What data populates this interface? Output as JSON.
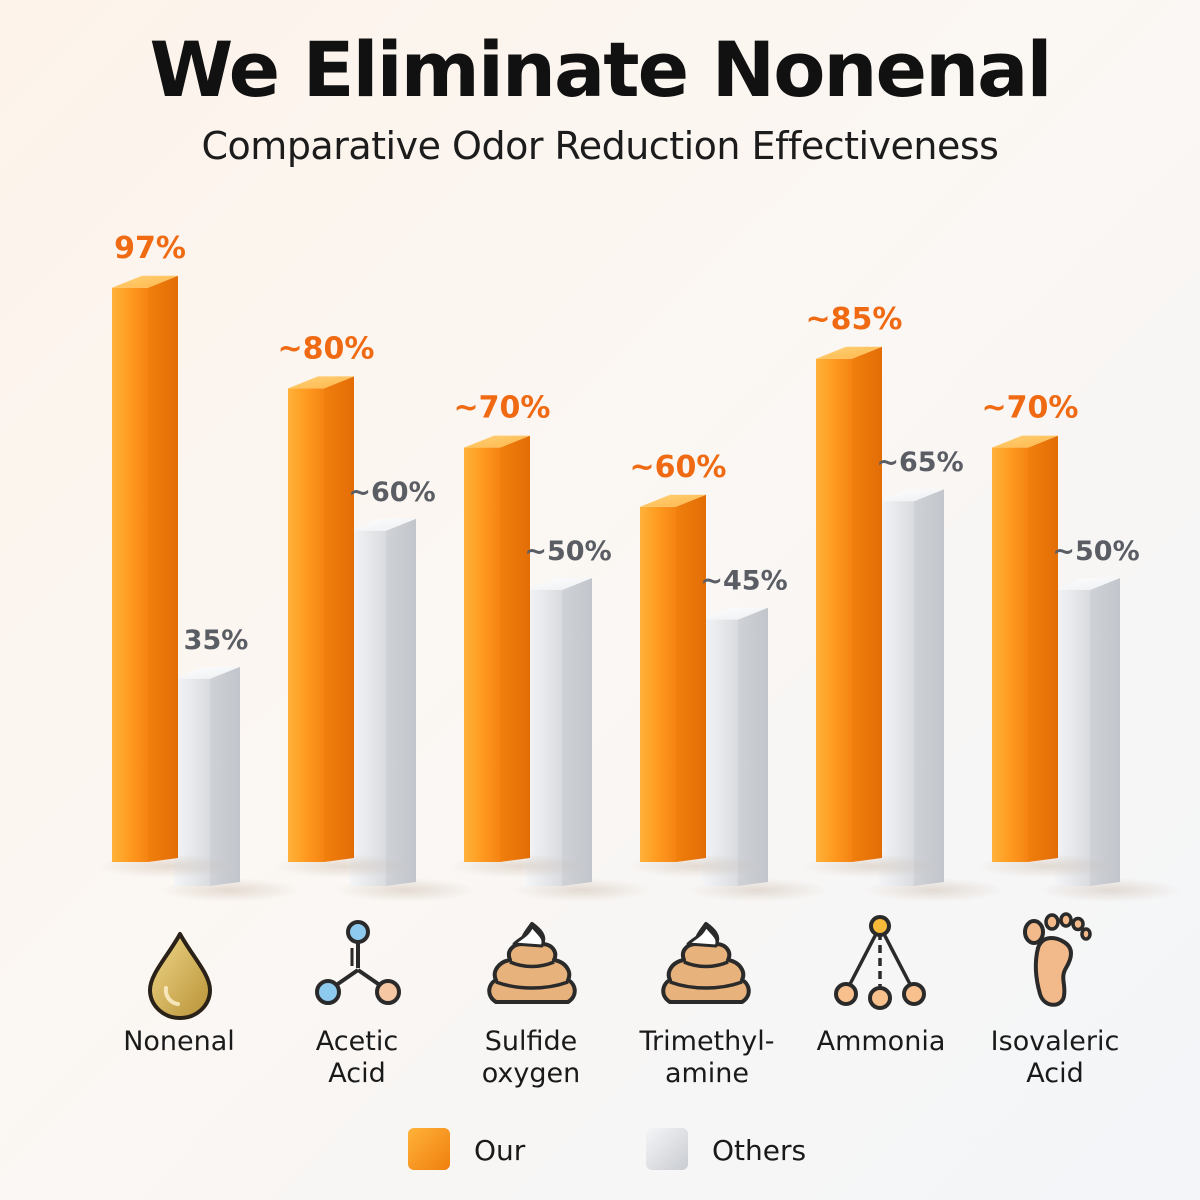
{
  "chart_data": {
    "type": "bar",
    "title": "We Eliminate Nonenal",
    "subtitle": "Comparative Odor Reduction Effectiveness",
    "categories": [
      "Nonenal",
      "Acetic Acid",
      "Sulfide oxygen",
      "Trimethyl-amine",
      "Ammonia",
      "Isovaleric Acid"
    ],
    "category_lines": [
      [
        "Nonenal"
      ],
      [
        "Acetic",
        "Acid"
      ],
      [
        "Sulfide",
        "oxygen"
      ],
      [
        "Trimethyl-",
        "amine"
      ],
      [
        "Ammonia"
      ],
      [
        "Isovaleric",
        "Acid"
      ]
    ],
    "category_icons": [
      "droplet-icon",
      "molecule-icon",
      "poop-icon",
      "poop-icon",
      "molecule-tree-icon",
      "footprint-icon"
    ],
    "series": [
      {
        "name": "Our",
        "color": "#f7931e",
        "values": [
          97,
          80,
          70,
          60,
          85,
          70
        ],
        "labels": [
          "97%",
          "~80%",
          "~70%",
          "~60%",
          "~85%",
          "~70%"
        ]
      },
      {
        "name": "Others",
        "color": "#dcdee2",
        "values": [
          35,
          60,
          50,
          45,
          65,
          50
        ],
        "labels": [
          "35%",
          "~60%",
          "~50%",
          "~45%",
          "~65%",
          "~50%"
        ]
      }
    ],
    "ylim": [
      0,
      100
    ],
    "grid": false,
    "legend": "bottom-center",
    "label_colors": {
      "our": "#ef6a12",
      "others": "#5a5d63"
    }
  }
}
